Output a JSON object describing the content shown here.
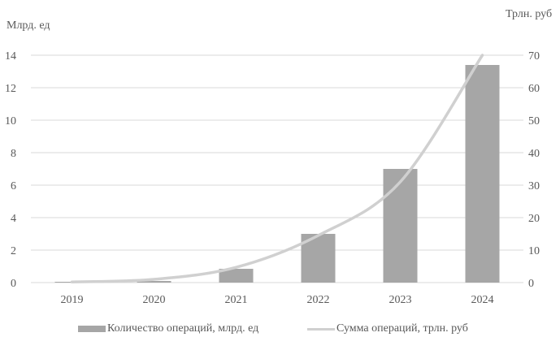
{
  "chart_data": {
    "type": "bar",
    "categories": [
      "2019",
      "2020",
      "2021",
      "2022",
      "2023",
      "2024"
    ],
    "y_left_label": "Млрд. ед",
    "y_right_label": "Трлн. руб",
    "ylim_left": [
      0,
      14
    ],
    "ylim_right": [
      0,
      70
    ],
    "yticks_left": [
      "0",
      "2",
      "4",
      "6",
      "8",
      "10",
      "12",
      "14"
    ],
    "yticks_right": [
      "0",
      "10",
      "20",
      "30",
      "40",
      "50",
      "60",
      "70"
    ],
    "grid": true,
    "legend_position": "bottom",
    "series": [
      {
        "name": "Количество операций, млрд. ед",
        "type": "bar",
        "axis": "left",
        "color": "#a6a6a6",
        "values": [
          0.05,
          0.1,
          0.85,
          3.0,
          7.0,
          13.4
        ]
      },
      {
        "name": "Сумма операций, трлн. руб",
        "type": "line",
        "axis": "right",
        "color": "#d0d0d0",
        "values": [
          0.2,
          1.0,
          4.7,
          14.5,
          31.0,
          70.0
        ]
      }
    ]
  }
}
